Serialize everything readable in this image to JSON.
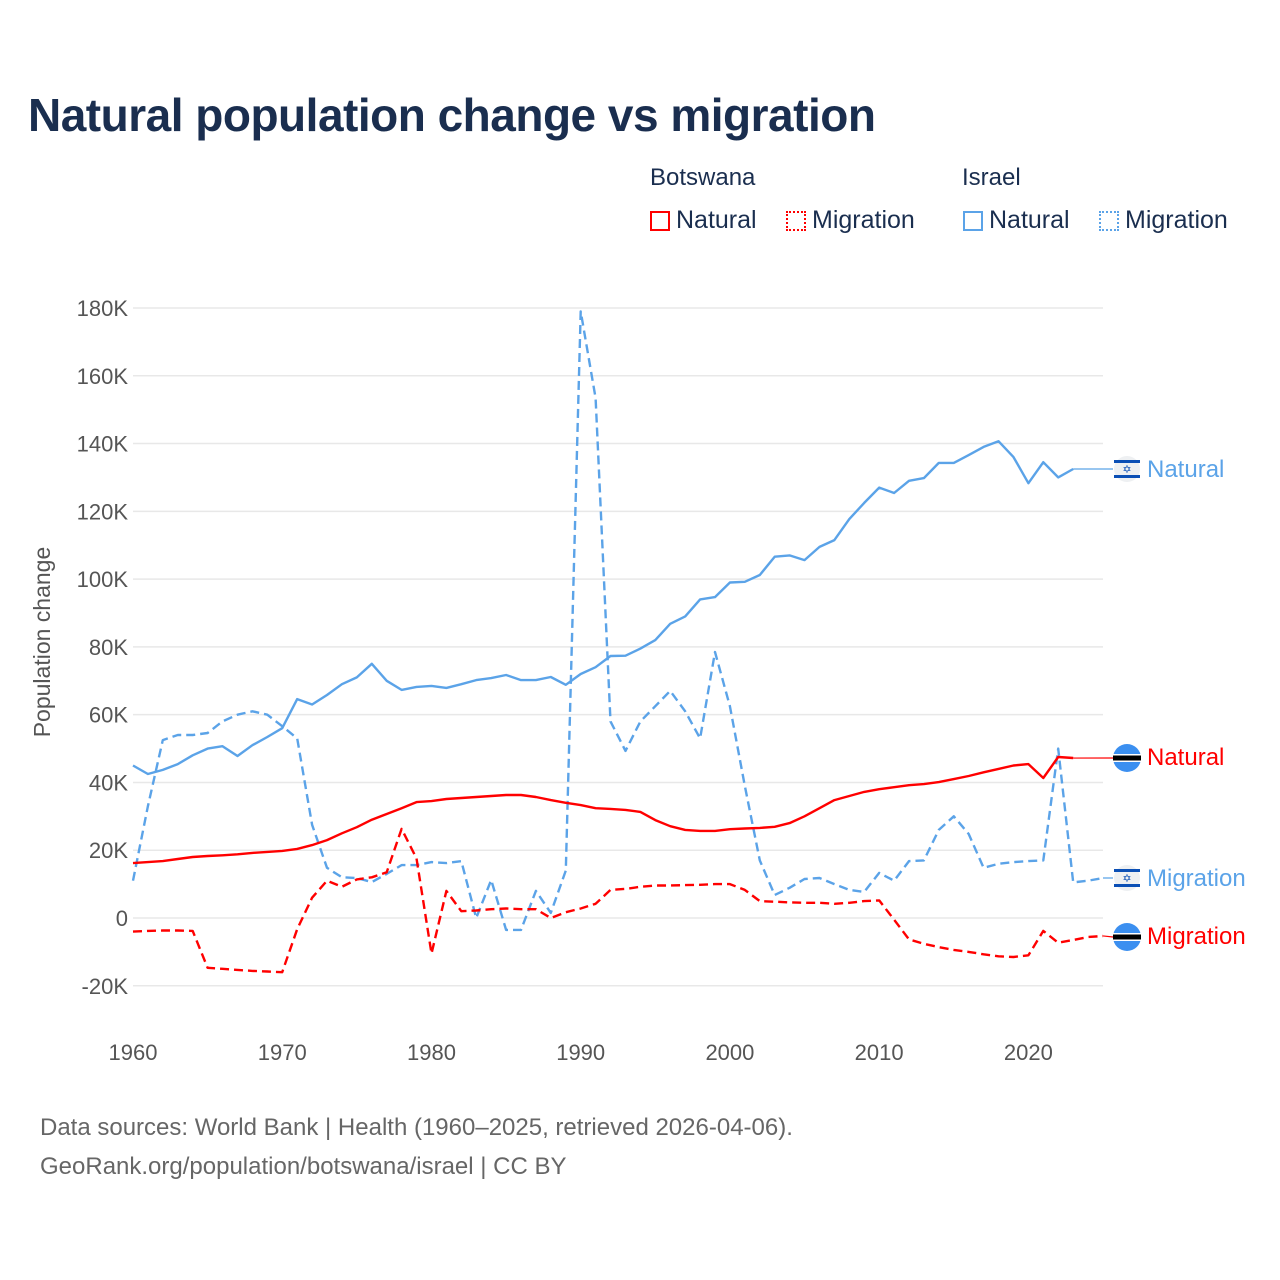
{
  "title": "Natural population change vs migration",
  "legend": {
    "groups": [
      {
        "name": "Botswana",
        "items": [
          {
            "label": "Natural",
            "style": "solid",
            "color": "#ff0000"
          },
          {
            "label": "Migration",
            "style": "dotted",
            "color": "#ff0000"
          }
        ]
      },
      {
        "name": "Israel",
        "items": [
          {
            "label": "Natural",
            "style": "solid",
            "color": "#5ba3e8"
          },
          {
            "label": "Migration",
            "style": "dotted",
            "color": "#5ba3e8"
          }
        ]
      }
    ]
  },
  "footer": {
    "line1": "Data sources: World Bank | Health (1960–2025, retrieved 2026-04-06).",
    "line2": "GeoRank.org/population/botswana/israel | CC BY"
  },
  "end_labels": {
    "israel_natural": "Natural",
    "botswana_natural": "Natural",
    "israel_migration": "Migration",
    "botswana_migration": "Migration"
  },
  "chart_data": {
    "type": "line",
    "title": "Natural population change vs migration",
    "xlabel": "",
    "ylabel": "Population change",
    "xlim": [
      1960,
      2025
    ],
    "ylim": [
      -20000,
      180000
    ],
    "xticks": [
      1960,
      1970,
      1980,
      1990,
      2000,
      2010,
      2020
    ],
    "yticks": [
      -20000,
      0,
      20000,
      40000,
      60000,
      80000,
      100000,
      120000,
      140000,
      160000,
      180000
    ],
    "ytick_labels": [
      "-20K",
      "0",
      "20K",
      "40K",
      "60K",
      "80K",
      "100K",
      "120K",
      "140K",
      "160K",
      "180K"
    ],
    "grid": true,
    "legend_position": "top-right",
    "x_start": 1960,
    "series": [
      {
        "name": "Israel Natural",
        "country": "Israel",
        "kind": "Natural",
        "color": "#5ba3e8",
        "dash": "solid",
        "values": [
          45000,
          42500,
          43700,
          45400,
          48000,
          50000,
          50700,
          47800,
          51000,
          53400,
          56000,
          64600,
          63000,
          65800,
          69000,
          71000,
          75000,
          70000,
          67300,
          68200,
          68500,
          67900,
          69000,
          70200,
          70800,
          71700,
          70200,
          70200,
          71100,
          68800,
          72000,
          74000,
          77300,
          77400,
          79500,
          82000,
          86800,
          89000,
          94000,
          94700,
          99000,
          99200,
          101200,
          106600,
          107000,
          105600,
          109500,
          111500,
          117700,
          122500,
          127000,
          125400,
          129000,
          129800,
          134300,
          134300,
          136600,
          139000,
          140700,
          136000,
          128300,
          134500,
          130000,
          132500
        ]
      },
      {
        "name": "Israel Migration",
        "country": "Israel",
        "kind": "Migration",
        "color": "#5ba3e8",
        "dash": "dashed",
        "values": [
          11000,
          33000,
          52500,
          54000,
          54000,
          54600,
          58000,
          60000,
          61000,
          60000,
          56600,
          53000,
          27500,
          14800,
          12000,
          11800,
          10600,
          13000,
          15600,
          15600,
          16500,
          16200,
          16800,
          0,
          11200,
          -3500,
          -3500,
          8000,
          1500,
          14000,
          179000,
          153400,
          58000,
          49300,
          58000,
          62500,
          67000,
          61000,
          53000,
          78500,
          62500,
          39000,
          17000,
          6800,
          8900,
          11500,
          11800,
          10000,
          8300,
          7700,
          13300,
          11000,
          16800,
          17000,
          26000,
          30000,
          24800,
          14800,
          16000,
          16500,
          16800,
          17000,
          50000,
          10500,
          11000,
          11800
        ]
      },
      {
        "name": "Botswana Natural",
        "country": "Botswana",
        "kind": "Natural",
        "color": "#ff0000",
        "dash": "solid",
        "values": [
          16200,
          16500,
          16800,
          17400,
          18000,
          18300,
          18500,
          18800,
          19200,
          19500,
          19800,
          20400,
          21500,
          23000,
          25000,
          26800,
          29000,
          30700,
          32400,
          34200,
          34500,
          35100,
          35400,
          35700,
          36000,
          36300,
          36300,
          35700,
          34800,
          34000,
          33300,
          32400,
          32200,
          31900,
          31300,
          28900,
          27100,
          26000,
          25700,
          25700,
          26200,
          26400,
          26600,
          26900,
          28000,
          30000,
          32400,
          34800,
          36000,
          37200,
          38000,
          38600,
          39200,
          39500,
          40100,
          41000,
          41900,
          43000,
          44000,
          45000,
          45400,
          41300,
          47500,
          47200
        ]
      },
      {
        "name": "Botswana Migration",
        "country": "Botswana",
        "kind": "Migration",
        "color": "#ff0000",
        "dash": "dashed",
        "values": [
          -4000,
          -3800,
          -3700,
          -3700,
          -3800,
          -14700,
          -15000,
          -15300,
          -15600,
          -15800,
          -16000,
          -3300,
          6000,
          11000,
          9200,
          11400,
          12000,
          13500,
          26300,
          17600,
          -10500,
          8000,
          2000,
          2200,
          2600,
          2800,
          2600,
          2600,
          0,
          1700,
          2800,
          4200,
          8300,
          8600,
          9200,
          9600,
          9600,
          9700,
          9800,
          10000,
          10000,
          8300,
          5000,
          4800,
          4600,
          4500,
          4500,
          4200,
          4500,
          5000,
          5200,
          -500,
          -6300,
          -7600,
          -8600,
          -9400,
          -10000,
          -10700,
          -11300,
          -11500,
          -11000,
          -3800,
          -7300,
          -6500,
          -5600,
          -5300
        ]
      }
    ]
  }
}
